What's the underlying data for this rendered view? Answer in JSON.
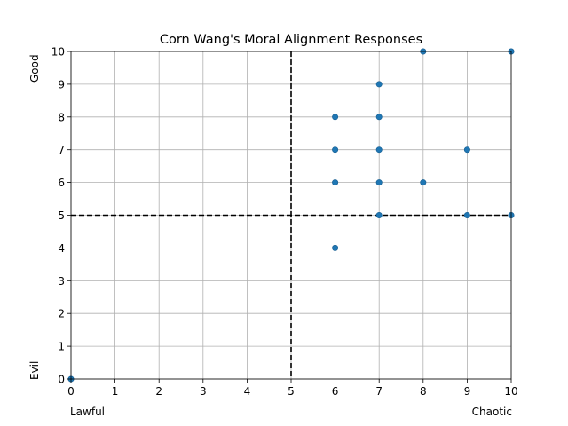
{
  "chart_data": {
    "type": "scatter",
    "title": "Corn Wang's Moral Alignment Responses",
    "xlabel_left": "Lawful",
    "xlabel_right": "Chaotic",
    "ylabel_bottom": "Evil",
    "ylabel_top": "Good",
    "xlim": [
      0,
      10
    ],
    "ylim": [
      0,
      10
    ],
    "xticks": [
      "0",
      "1",
      "2",
      "3",
      "4",
      "5",
      "6",
      "7",
      "8",
      "9",
      "10"
    ],
    "yticks": [
      "0",
      "1",
      "2",
      "3",
      "4",
      "5",
      "6",
      "7",
      "8",
      "9",
      "10"
    ],
    "grid": true,
    "reference_lines": [
      {
        "axis": "x",
        "value": 5,
        "style": "dashed",
        "color": "#000000"
      },
      {
        "axis": "y",
        "value": 5,
        "style": "dashed",
        "color": "#000000"
      }
    ],
    "marker_color": "#1f77b4",
    "points": [
      {
        "x": 0,
        "y": 0
      },
      {
        "x": 6,
        "y": 4
      },
      {
        "x": 6,
        "y": 6
      },
      {
        "x": 6,
        "y": 7
      },
      {
        "x": 6,
        "y": 8
      },
      {
        "x": 7,
        "y": 5
      },
      {
        "x": 7,
        "y": 6
      },
      {
        "x": 7,
        "y": 7
      },
      {
        "x": 7,
        "y": 8
      },
      {
        "x": 7,
        "y": 9
      },
      {
        "x": 8,
        "y": 6
      },
      {
        "x": 8,
        "y": 10
      },
      {
        "x": 9,
        "y": 5
      },
      {
        "x": 9,
        "y": 7
      },
      {
        "x": 10,
        "y": 5
      },
      {
        "x": 10,
        "y": 10
      }
    ]
  }
}
